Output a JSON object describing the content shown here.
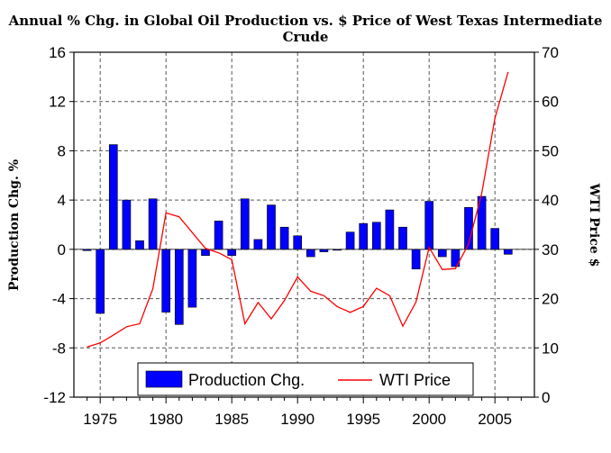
{
  "chart_data": {
    "type": "bar+line",
    "title": "Annual % Chg. in Global Oil Production vs. $ Price of West Texas Intermediate Crude",
    "ylabel_left": "Production Chg. %",
    "ylabel_right": "WTI Price $",
    "ylim_left": [
      -12,
      16
    ],
    "ylim_right": [
      0,
      70
    ],
    "yticks_left": [
      "16",
      "12",
      "8",
      "4",
      "0",
      "-4",
      "-8",
      "-12"
    ],
    "yticks_right": [
      "70",
      "60",
      "50",
      "40",
      "30",
      "20",
      "10",
      "0"
    ],
    "xticks": [
      "1975",
      "1980",
      "1985",
      "1990",
      "1995",
      "2000",
      "2005"
    ],
    "grid": true,
    "legend": [
      "Production Chg.",
      "WTI Price"
    ],
    "colors": {
      "bar": "#0000ff",
      "line": "#ff0000"
    },
    "years": [
      1974,
      1975,
      1976,
      1977,
      1978,
      1979,
      1980,
      1981,
      1982,
      1983,
      1984,
      1985,
      1986,
      1987,
      1988,
      1989,
      1990,
      1991,
      1992,
      1993,
      1994,
      1995,
      1996,
      1997,
      1998,
      1999,
      2000,
      2001,
      2002,
      2003,
      2004,
      2005,
      2006
    ],
    "production_chg": [
      -0.1,
      -5.2,
      8.5,
      4.0,
      0.7,
      4.1,
      -5.1,
      -6.1,
      -4.7,
      -0.5,
      2.3,
      -0.5,
      4.1,
      0.8,
      3.6,
      1.8,
      1.1,
      -0.6,
      -0.2,
      0.0,
      1.4,
      2.1,
      2.2,
      3.2,
      1.8,
      -1.6,
      3.9,
      -0.6,
      -1.4,
      3.4,
      4.3,
      1.7,
      -0.4
    ],
    "wti_price": [
      10.2,
      11.0,
      12.6,
      14.3,
      14.9,
      22.0,
      37.4,
      36.6,
      33.4,
      30.2,
      29.3,
      27.9,
      14.9,
      19.2,
      15.9,
      19.6,
      24.4,
      21.5,
      20.6,
      18.4,
      17.2,
      18.4,
      22.1,
      20.6,
      14.4,
      19.3,
      30.4,
      25.9,
      26.1,
      31.1,
      41.4,
      56.6,
      66.0
    ]
  }
}
